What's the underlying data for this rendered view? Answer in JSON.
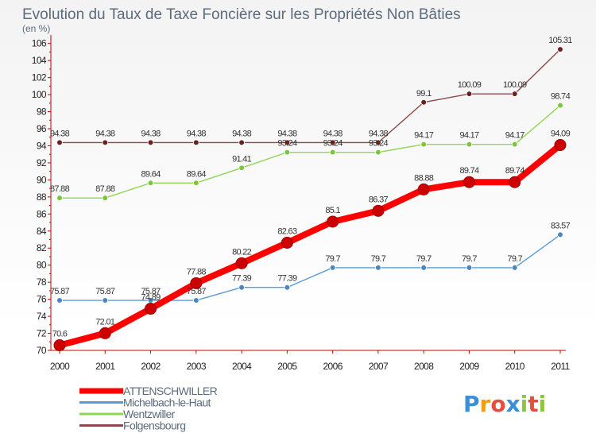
{
  "brand": {
    "name": "Proxiti"
  },
  "chart_data": {
    "type": "line",
    "title": "Evolution du Taux de Taxe Foncière sur les Propriétés Non Bâties",
    "subtitle": "(en %)",
    "xlabel": "",
    "ylabel": "",
    "categories": [
      "2000",
      "2001",
      "2002",
      "2003",
      "2004",
      "2005",
      "2006",
      "2007",
      "2008",
      "2009",
      "2010",
      "2011"
    ],
    "ylim": [
      70,
      107
    ],
    "yticks": [
      70,
      72,
      74,
      76,
      78,
      80,
      82,
      84,
      86,
      88,
      90,
      92,
      94,
      96,
      98,
      100,
      102,
      104,
      106
    ],
    "grid": false,
    "legend_position": "bottom-left",
    "series": [
      {
        "name": "ATTENSCHWILLER",
        "color": "#ff0000",
        "marker_color": "#cc0000",
        "emphasis": true,
        "values": [
          70.6,
          72.01,
          74.89,
          77.88,
          80.22,
          82.63,
          85.1,
          86.37,
          88.88,
          89.74,
          89.74,
          94.09
        ],
        "labels": [
          "70.6",
          "72.01",
          "74.89",
          "77.88",
          "80.22",
          "82.63",
          "85.1",
          "86.37",
          "88.88",
          "89.74",
          "89.74",
          "94.09"
        ]
      },
      {
        "name": "Michelbach-le-Haut",
        "color": "#5b9bd5",
        "marker_color": "#4a86c0",
        "values": [
          75.87,
          75.87,
          75.87,
          75.87,
          77.39,
          77.39,
          79.7,
          79.7,
          79.7,
          79.7,
          79.7,
          83.57
        ],
        "labels": [
          "75.87",
          "75.87",
          "75.87",
          "75.87",
          "77.39",
          "77.39",
          "79.7",
          "79.7",
          "79.7",
          "79.7",
          "79.7",
          "83.57"
        ]
      },
      {
        "name": "Wentzwiller",
        "color": "#8fd651",
        "marker_color": "#7cc63d",
        "values": [
          87.88,
          87.88,
          89.64,
          89.64,
          91.41,
          93.24,
          93.24,
          93.24,
          94.17,
          94.17,
          94.17,
          98.74
        ],
        "labels": [
          "87.88",
          "87.88",
          "89.64",
          "89.64",
          "91.41",
          "93.24",
          "93.24",
          "93.24",
          "94.17",
          "94.17",
          "94.17",
          "98.74"
        ]
      },
      {
        "name": "Folgensbourg",
        "color": "#8b4a4a",
        "marker_color": "#6b1f1f",
        "values": [
          94.38,
          94.38,
          94.38,
          94.38,
          94.38,
          94.38,
          94.38,
          94.38,
          99.1,
          100.09,
          100.09,
          105.31
        ],
        "labels": [
          "94.38",
          "94.38",
          "94.38",
          "94.38",
          "94.38",
          "94.38",
          "94.38",
          "94.38",
          "99.1",
          "100.09",
          "100.09",
          "105.31"
        ]
      }
    ]
  },
  "logo_colors": [
    "#3a8fd6",
    "#f39c12",
    "#e74c3c",
    "#3a8fd6",
    "#8cc63f",
    "#e74c3c",
    "#8cc63f"
  ]
}
